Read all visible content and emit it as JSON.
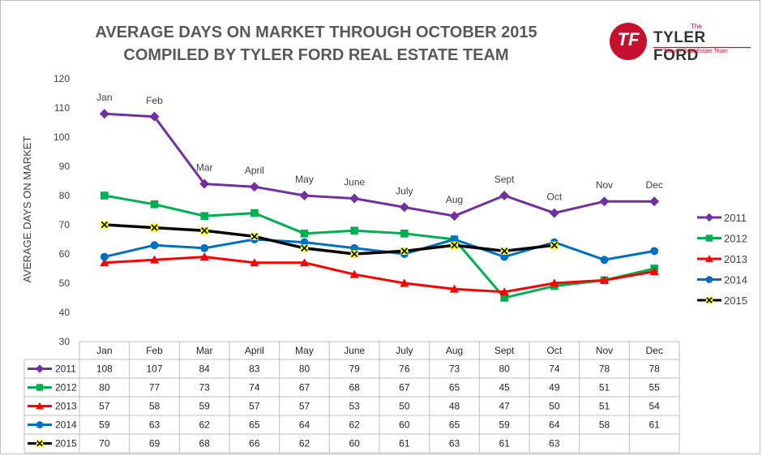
{
  "title_line1": "AVERAGE DAYS ON MARKET THROUGH OCTOBER 2015",
  "title_line2": "COMPILED BY TYLER FORD REAL ESTATE TEAM",
  "logo": {
    "the": "The",
    "name": "TYLER FORD",
    "tagline": "Tucson Real Estate Team",
    "monogram": "TF"
  },
  "chart_data": {
    "type": "line",
    "ylabel": "AVERAGE DAYS ON MARKET",
    "ylim": [
      30,
      120
    ],
    "yticks": [
      30,
      40,
      50,
      60,
      70,
      80,
      90,
      100,
      110,
      120
    ],
    "categories": [
      "Jan",
      "Feb",
      "Mar",
      "April",
      "May",
      "June",
      "July",
      "Aug",
      "Sept",
      "Oct",
      "Nov",
      "Dec"
    ],
    "legend_position": "right",
    "series": [
      {
        "name": "2011",
        "color": "#7030a0",
        "marker": "diamond",
        "values": [
          108,
          107,
          84,
          83,
          80,
          79,
          76,
          73,
          80,
          74,
          78,
          78
        ]
      },
      {
        "name": "2012",
        "color": "#00b050",
        "marker": "square",
        "values": [
          80,
          77,
          73,
          74,
          67,
          68,
          67,
          65,
          45,
          49,
          51,
          55
        ]
      },
      {
        "name": "2013",
        "color": "#ff0000",
        "marker": "triangle",
        "values": [
          57,
          58,
          59,
          57,
          57,
          53,
          50,
          48,
          47,
          50,
          51,
          54
        ]
      },
      {
        "name": "2014",
        "color": "#0070c0",
        "marker": "circle",
        "values": [
          59,
          63,
          62,
          65,
          64,
          62,
          60,
          65,
          59,
          64,
          58,
          61
        ]
      },
      {
        "name": "2015",
        "color": "#000000",
        "marker": "x-yellow",
        "values": [
          70,
          69,
          68,
          66,
          62,
          60,
          61,
          63,
          61,
          63,
          null,
          null
        ]
      }
    ]
  }
}
